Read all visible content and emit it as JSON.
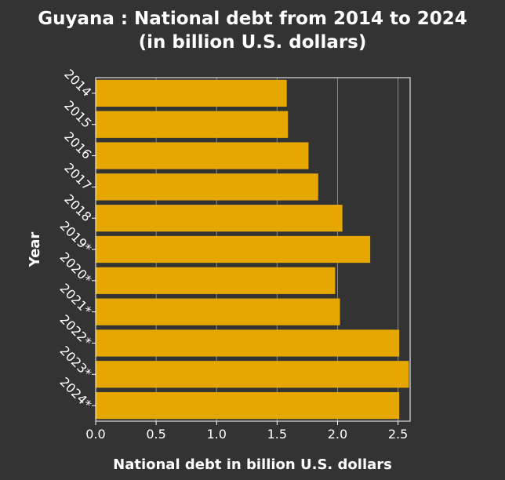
{
  "chart_data": {
    "type": "bar",
    "orientation": "horizontal",
    "title": "Guyana : National debt from 2014 to 2024",
    "subtitle": "(in billion U.S. dollars)",
    "xlabel": "National debt in billion U.S. dollars",
    "ylabel": "Year",
    "categories": [
      "2014",
      "2015",
      "2016",
      "2017",
      "2018",
      "2019*",
      "2020*",
      "2021*",
      "2022*",
      "2023*",
      "2024*"
    ],
    "values": [
      1.58,
      1.59,
      1.76,
      1.84,
      2.04,
      2.27,
      1.98,
      2.02,
      2.51,
      2.59,
      2.51
    ],
    "xlim": [
      0,
      2.6
    ],
    "xticks": [
      "0.0",
      "0.5",
      "1.0",
      "1.5",
      "2.0",
      "2.5"
    ],
    "grid": "vertical",
    "bar_color": "#e6a800",
    "background_color": "#333333",
    "grid_color": "#8a8a8a"
  }
}
